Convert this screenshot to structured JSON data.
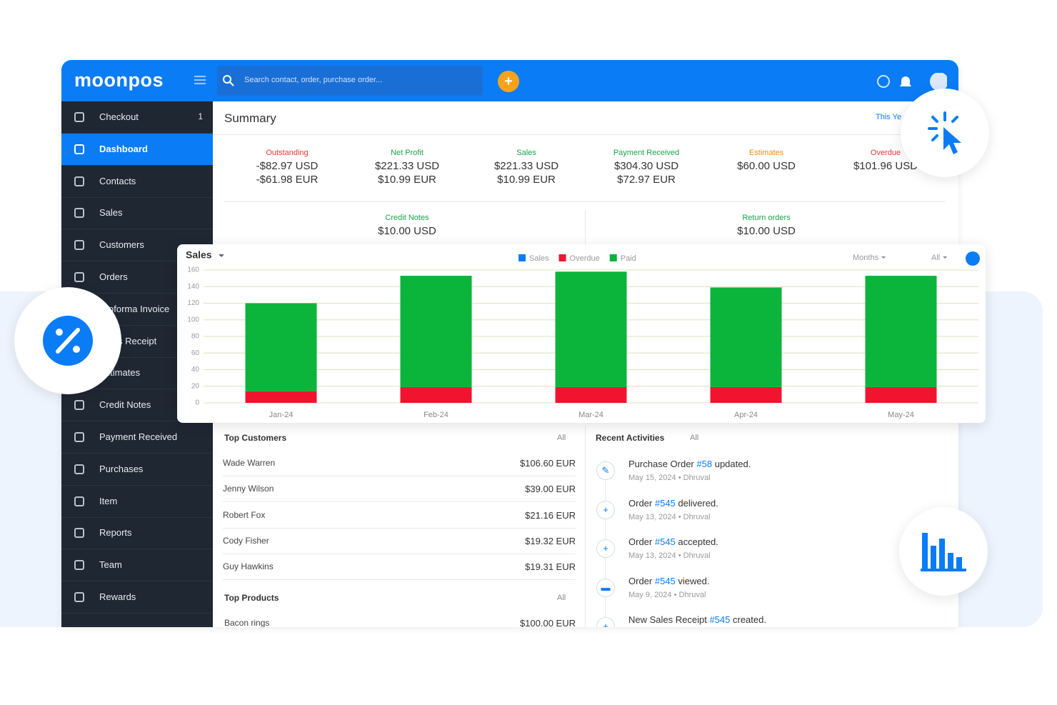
{
  "header": {
    "logo": "moonpos",
    "search_placeholder": "Search contact, order, purchase order..."
  },
  "sidebar": {
    "items": [
      {
        "label": "Checkout",
        "badge": "1"
      },
      {
        "label": "Dashboard",
        "active": true
      },
      {
        "label": "Contacts"
      },
      {
        "label": "Sales"
      },
      {
        "label": "Customers"
      },
      {
        "label": "Orders"
      },
      {
        "label": "Proforma Invoice"
      },
      {
        "label": "Sales Receipt"
      },
      {
        "label": "Estimates"
      },
      {
        "label": "Credit Notes"
      },
      {
        "label": "Payment Received"
      },
      {
        "label": "Purchases"
      },
      {
        "label": "Item"
      },
      {
        "label": "Reports"
      },
      {
        "label": "Team"
      },
      {
        "label": "Rewards"
      }
    ]
  },
  "summary": {
    "title": "Summary",
    "period": "This Ye",
    "cards": [
      {
        "label": "Outstanding",
        "color": "#e53935",
        "values": [
          "-$82.97 USD",
          "-$61.98 EUR"
        ]
      },
      {
        "label": "Net Profit",
        "color": "#1aa34a",
        "values": [
          "$221.33 USD",
          "$10.99 EUR"
        ]
      },
      {
        "label": "Sales",
        "color": "#1aa34a",
        "values": [
          "$221.33 USD",
          "$10.99 EUR"
        ]
      },
      {
        "label": "Payment Received",
        "color": "#1aa34a",
        "values": [
          "$304.30 USD",
          "$72.97 EUR"
        ]
      },
      {
        "label": "Estimates",
        "color": "#f08a24",
        "values": [
          "$60.00 USD"
        ]
      },
      {
        "label": "Overdue",
        "color": "#e53935",
        "values": [
          "$101.96 USD"
        ]
      }
    ],
    "cards_row2": [
      {
        "label": "Credit Notes",
        "color": "#1aa34a",
        "values": [
          "$10.00 USD"
        ]
      },
      {
        "label": "Return orders",
        "color": "#1aa34a",
        "values": [
          "$10.00 USD"
        ]
      }
    ]
  },
  "chart_data": {
    "type": "stacked_bar",
    "title": "Sales",
    "filters": [
      "Months",
      "All"
    ],
    "categories": [
      "Jan-24",
      "Feb-24",
      "Mar-24",
      "Apr-24",
      "May-24"
    ],
    "series": [
      {
        "name": "Sales",
        "color": "#0a7cf5",
        "values": [
          0,
          0,
          0,
          0,
          0
        ]
      },
      {
        "name": "Overdue",
        "color": "#f0142f",
        "values": [
          14,
          19,
          19,
          19,
          19
        ]
      },
      {
        "name": "Paid",
        "color": "#0bb43a",
        "values": [
          106,
          134,
          139,
          120,
          134
        ]
      }
    ],
    "ylim": [
      0,
      160
    ],
    "yticks": [
      0,
      20,
      40,
      60,
      80,
      100,
      120,
      140,
      160
    ],
    "grid": true,
    "grid_color": "#d8e6b8"
  },
  "top_customers": {
    "title": "Top Customers",
    "filter": "All",
    "rows": [
      {
        "name": "Wade Warren",
        "amount": "$106.60 EUR"
      },
      {
        "name": "Jenny Wilson",
        "amount": "$39.00 EUR"
      },
      {
        "name": "Robert Fox",
        "amount": "$21.16 EUR"
      },
      {
        "name": "Cody Fisher",
        "amount": "$19.32 EUR"
      },
      {
        "name": "Guy Hawkins",
        "amount": "$19.31 EUR"
      }
    ]
  },
  "top_products": {
    "title": "Top Products",
    "filter": "All",
    "rows": [
      {
        "name": "Bacon rings",
        "amount": "$100.00 EUR"
      }
    ]
  },
  "recent_activities": {
    "title": "Recent Activities",
    "filter": "All",
    "items": [
      {
        "prefix": "Purchase Order",
        "link": "#58",
        "suffix": "updated.",
        "meta": "May 15, 2024 • Dhruval"
      },
      {
        "prefix": "Order",
        "link": "#545",
        "suffix": "delivered.",
        "meta": "May 13, 2024 • Dhruval"
      },
      {
        "prefix": "Order",
        "link": "#545",
        "suffix": "accepted.",
        "meta": "May 13, 2024 • Dhruval"
      },
      {
        "prefix": "Order",
        "link": "#545",
        "suffix": "viewed.",
        "meta": "May 9, 2024 • Dhruval"
      },
      {
        "prefix": "New Sales Receipt",
        "link": "#545",
        "suffix": "created."
      }
    ]
  }
}
